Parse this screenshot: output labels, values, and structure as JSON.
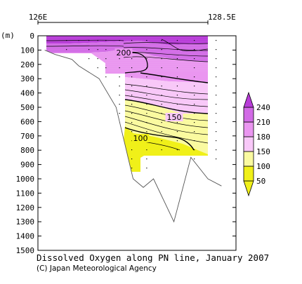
{
  "chart_data": {
    "type": "heatmap",
    "title": "Dissolved Oxygen along PN line, January 2007",
    "credit": "(C) Japan Meteorological Agency",
    "x_ticks": [
      {
        "label": "126E",
        "lon": 126.0
      },
      {
        "label": "128.5E",
        "lon": 128.5
      }
    ],
    "ylabel": "(m)",
    "ylim": [
      0,
      1500
    ],
    "y_ticks": [
      0,
      100,
      200,
      300,
      400,
      500,
      600,
      700,
      800,
      900,
      1000,
      1100,
      1200,
      1300,
      1400,
      1500
    ],
    "grid": false,
    "colorbar": {
      "ticks": [
        50,
        100,
        150,
        180,
        210,
        240
      ],
      "bins": [
        {
          "range": "<100",
          "color": "#f0f019"
        },
        {
          "range": "100-150",
          "color": "#fafaa0"
        },
        {
          "range": "150-180",
          "color": "#f8c8f8"
        },
        {
          "range": "180-210",
          "color": "#ea96f0"
        },
        {
          "range": "210-240",
          "color": "#d26be6"
        },
        {
          "range": ">240",
          "color": "#b83cd8"
        }
      ],
      "placement": "right"
    },
    "contour_labels": [
      {
        "value": "200"
      },
      {
        "value": "150"
      },
      {
        "value": "100"
      }
    ],
    "bottom_profile": [
      [
        126.1,
        100
      ],
      [
        126.25,
        130
      ],
      [
        126.5,
        165
      ],
      [
        126.6,
        210
      ],
      [
        126.9,
        300
      ],
      [
        127.15,
        500
      ],
      [
        127.4,
        1000
      ],
      [
        127.55,
        1060
      ],
      [
        127.7,
        1000
      ],
      [
        128.0,
        1300
      ],
      [
        128.25,
        850
      ],
      [
        128.5,
        1000
      ],
      [
        128.7,
        1050
      ]
    ],
    "stations": [
      {
        "lon": 126.42,
        "depth": 120
      },
      {
        "lon": 126.6,
        "depth": 90
      },
      {
        "lon": 126.75,
        "depth": 160
      },
      {
        "lon": 126.88,
        "depth": 250
      },
      {
        "lon": 127.0,
        "depth": 310
      },
      {
        "lon": 127.2,
        "depth": 900
      },
      {
        "lon": 127.38,
        "depth": 950
      },
      {
        "lon": 127.6,
        "depth": 1000
      },
      {
        "lon": 127.82,
        "depth": 840
      },
      {
        "lon": 128.05,
        "depth": 840
      },
      {
        "lon": 128.3,
        "depth": 870
      },
      {
        "lon": 128.62,
        "depth": 900
      }
    ]
  }
}
